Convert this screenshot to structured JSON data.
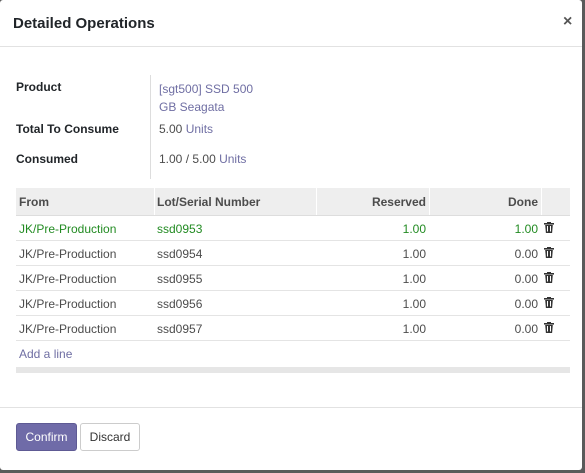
{
  "dialog": {
    "title": "Detailed Operations",
    "close": "×"
  },
  "fields": {
    "product": {
      "label": "Product",
      "value": "[sgt500] SSD 500 GB Seagata"
    },
    "total_to_consume": {
      "label": "Total To Consume",
      "value": "5.00",
      "unit": "Units"
    },
    "consumed": {
      "label": "Consumed",
      "value": "1.00",
      "separator": "/",
      "total": "5.00",
      "unit": "Units"
    }
  },
  "table": {
    "columns": [
      "From",
      "Lot/Serial Number",
      "Reserved",
      "Done"
    ],
    "rows": [
      [
        "JK/Pre-Production",
        "ssd0953",
        "1.00",
        "1.00"
      ],
      [
        "JK/Pre-Production",
        "ssd0954",
        "1.00",
        "0.00"
      ],
      [
        "JK/Pre-Production",
        "ssd0955",
        "1.00",
        "0.00"
      ],
      [
        "JK/Pre-Production",
        "ssd0956",
        "1.00",
        "0.00"
      ],
      [
        "JK/Pre-Production",
        "ssd0957",
        "1.00",
        "0.00"
      ]
    ],
    "add_line": "Add a line"
  },
  "footer": {
    "confirm": "Confirm",
    "discard": "Discard"
  }
}
